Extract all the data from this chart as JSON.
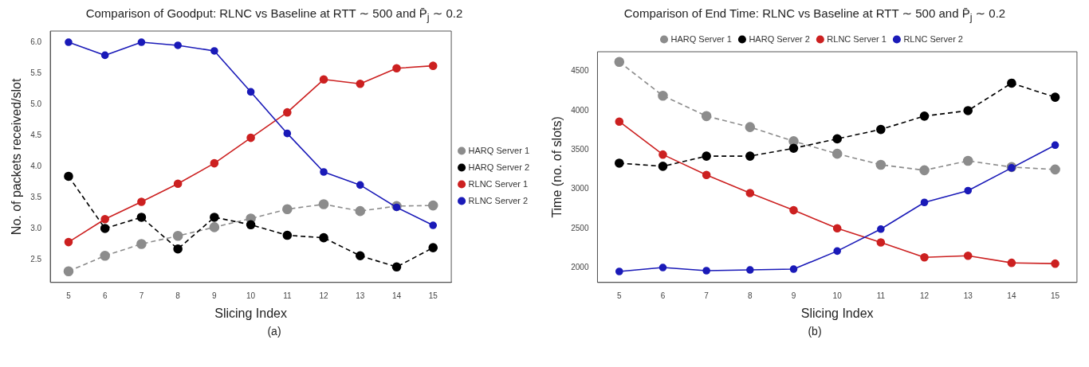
{
  "chart_data": [
    {
      "type": "line",
      "title": "Comparison of Goodput: RLNC vs Baseline at RTT ∼ 500 and P̄$_{j}$ ∼ 0.2",
      "xlabel": "Slicing Index",
      "ylabel": "No. of packets received/slot",
      "annotations": [
        "(a)"
      ],
      "x": [
        5,
        6,
        7,
        8,
        9,
        10,
        11,
        12,
        13,
        14,
        15
      ],
      "xlim": [
        4.5,
        15.5
      ],
      "xticks": [
        5,
        6,
        7,
        8,
        9,
        10,
        11,
        12,
        13,
        14,
        15
      ],
      "ylim": [
        2.13,
        6.18
      ],
      "yticks": [
        2.5,
        {
          "value": 3,
          "label": "3.0"
        },
        3.5,
        {
          "value": 4,
          "label": "4.0"
        },
        4.5,
        {
          "value": 5,
          "label": "5.0"
        },
        5.5,
        {
          "value": 6,
          "label": "6.0"
        }
      ],
      "grid": false,
      "legend": "right",
      "marker": "circle",
      "series": [
        {
          "name": "HARQ Server 1",
          "color": "#8c8c8c",
          "line_style": "dashed",
          "values": [
            2.31,
            2.56,
            2.75,
            2.88,
            3.02,
            3.16,
            3.31,
            3.39,
            3.28,
            3.36,
            3.37
          ]
        },
        {
          "name": "HARQ Server 2",
          "color": "#000000",
          "line_style": "dashed",
          "values": [
            3.84,
            3.0,
            3.18,
            2.67,
            3.18,
            3.06,
            2.89,
            2.85,
            2.56,
            2.38,
            2.69
          ]
        },
        {
          "name": "RLNC Server 1",
          "color": "#cc2020",
          "line_style": "solid",
          "values": [
            2.78,
            3.15,
            3.43,
            3.72,
            4.05,
            4.46,
            4.87,
            5.4,
            5.33,
            5.58,
            5.62
          ]
        },
        {
          "name": "RLNC Server 2",
          "color": "#1a1ab8",
          "line_style": "solid",
          "values": [
            6.0,
            5.79,
            6.0,
            5.95,
            5.86,
            5.2,
            4.53,
            3.91,
            3.7,
            3.34,
            3.05
          ]
        }
      ]
    },
    {
      "type": "line",
      "title": "Comparison of End Time: RLNC vs Baseline at RTT ∼ 500 and P̄$_{j}$ ∼ 0.2",
      "xlabel": "Slicing Index",
      "ylabel": "Time (no. of slots)",
      "annotations": [
        "(b)"
      ],
      "x": [
        5,
        6,
        7,
        8,
        9,
        10,
        11,
        12,
        13,
        14,
        15
      ],
      "xlim": [
        4.5,
        15.5
      ],
      "xticks": [
        5,
        6,
        7,
        8,
        9,
        10,
        11,
        12,
        13,
        14,
        15
      ],
      "ylim": [
        1810,
        4750
      ],
      "yticks": [
        2000,
        2500,
        3000,
        3500,
        4000,
        4500
      ],
      "grid": false,
      "legend": "top",
      "marker": "circle",
      "series": [
        {
          "name": "HARQ Server 1",
          "color": "#8c8c8c",
          "line_style": "dashed",
          "values": [
            4620,
            4190,
            3930,
            3790,
            3610,
            3450,
            3310,
            3240,
            3360,
            3280,
            3250
          ]
        },
        {
          "name": "HARQ Server 2",
          "color": "#000000",
          "line_style": "dashed",
          "values": [
            3330,
            3290,
            3420,
            3420,
            3520,
            3640,
            3760,
            3930,
            4000,
            4350,
            4170
          ]
        },
        {
          "name": "RLNC Server 1",
          "color": "#cc2020",
          "line_style": "solid",
          "values": [
            3860,
            3440,
            3180,
            2950,
            2730,
            2500,
            2320,
            2130,
            2150,
            2060,
            2050
          ]
        },
        {
          "name": "RLNC Server 2",
          "color": "#1a1ab8",
          "line_style": "solid",
          "values": [
            1950,
            2000,
            1960,
            1970,
            1980,
            2210,
            2490,
            2830,
            2980,
            3270,
            3560
          ]
        }
      ]
    }
  ]
}
